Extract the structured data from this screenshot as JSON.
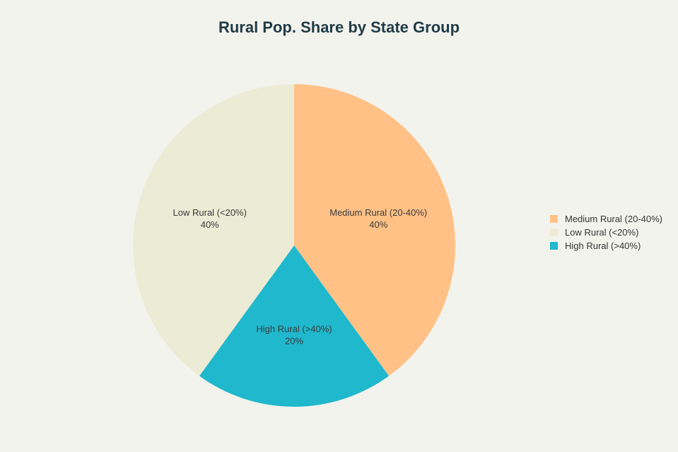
{
  "chart_data": {
    "type": "pie",
    "title": "Rural Pop. Share by State Group",
    "legend_placement": "right",
    "slices": [
      {
        "label": "Medium Rural (20-40%)",
        "value": 40,
        "display": "40%",
        "color": "#ffc186"
      },
      {
        "label": "High Rural (>40%)",
        "value": 20,
        "display": "20%",
        "color": "#1fb8cd"
      },
      {
        "label": "Low Rural (<20%)",
        "value": 40,
        "display": "40%",
        "color": "#ecebd5"
      }
    ],
    "legend": [
      {
        "label": "Medium Rural (20-40%)",
        "color": "#ffc186"
      },
      {
        "label": "Low Rural (<20%)",
        "color": "#ecebd5"
      },
      {
        "label": "High Rural (>40%)",
        "color": "#1fb8cd"
      }
    ]
  }
}
